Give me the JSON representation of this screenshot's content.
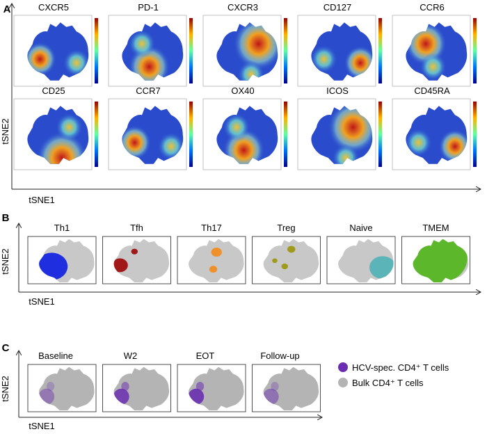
{
  "chart_data": [
    {
      "panel": "A",
      "type": "scatter",
      "xlabel": "tSNE1",
      "ylabel": "tSNE2",
      "colormap": "jet",
      "subplots": [
        "CXCR5",
        "PD-1",
        "CXCR3",
        "CD127",
        "CCR6",
        "CD25",
        "CCR7",
        "OX40",
        "ICOS",
        "CD45RA"
      ]
    },
    {
      "panel": "B",
      "type": "scatter",
      "xlabel": "tSNE1",
      "ylabel": "tSNE2",
      "subplots": [
        {
          "title": "Th1",
          "color": "#1f2fe0"
        },
        {
          "title": "Tfh",
          "color": "#a01818"
        },
        {
          "title": "Th17",
          "color": "#f0902a"
        },
        {
          "title": "Treg",
          "color": "#a09a1a"
        },
        {
          "title": "Naive",
          "color": "#5ab4b8"
        },
        {
          "title": "TMEM",
          "color": "#5cb82a"
        }
      ],
      "background_color": "#c8c8c8"
    },
    {
      "panel": "C",
      "type": "scatter",
      "xlabel": "tSNE1",
      "ylabel": "tSNE2",
      "subplots": [
        "Baseline",
        "W2",
        "EOT",
        "Follow-up"
      ],
      "legend": {
        "placement": "right",
        "entries": [
          {
            "label": "HCV-spec. CD4⁺ T cells",
            "color": "#6a2fb0"
          },
          {
            "label": "Bulk CD4⁺ T cells",
            "color": "#b4b4b4"
          }
        ]
      }
    }
  ]
}
